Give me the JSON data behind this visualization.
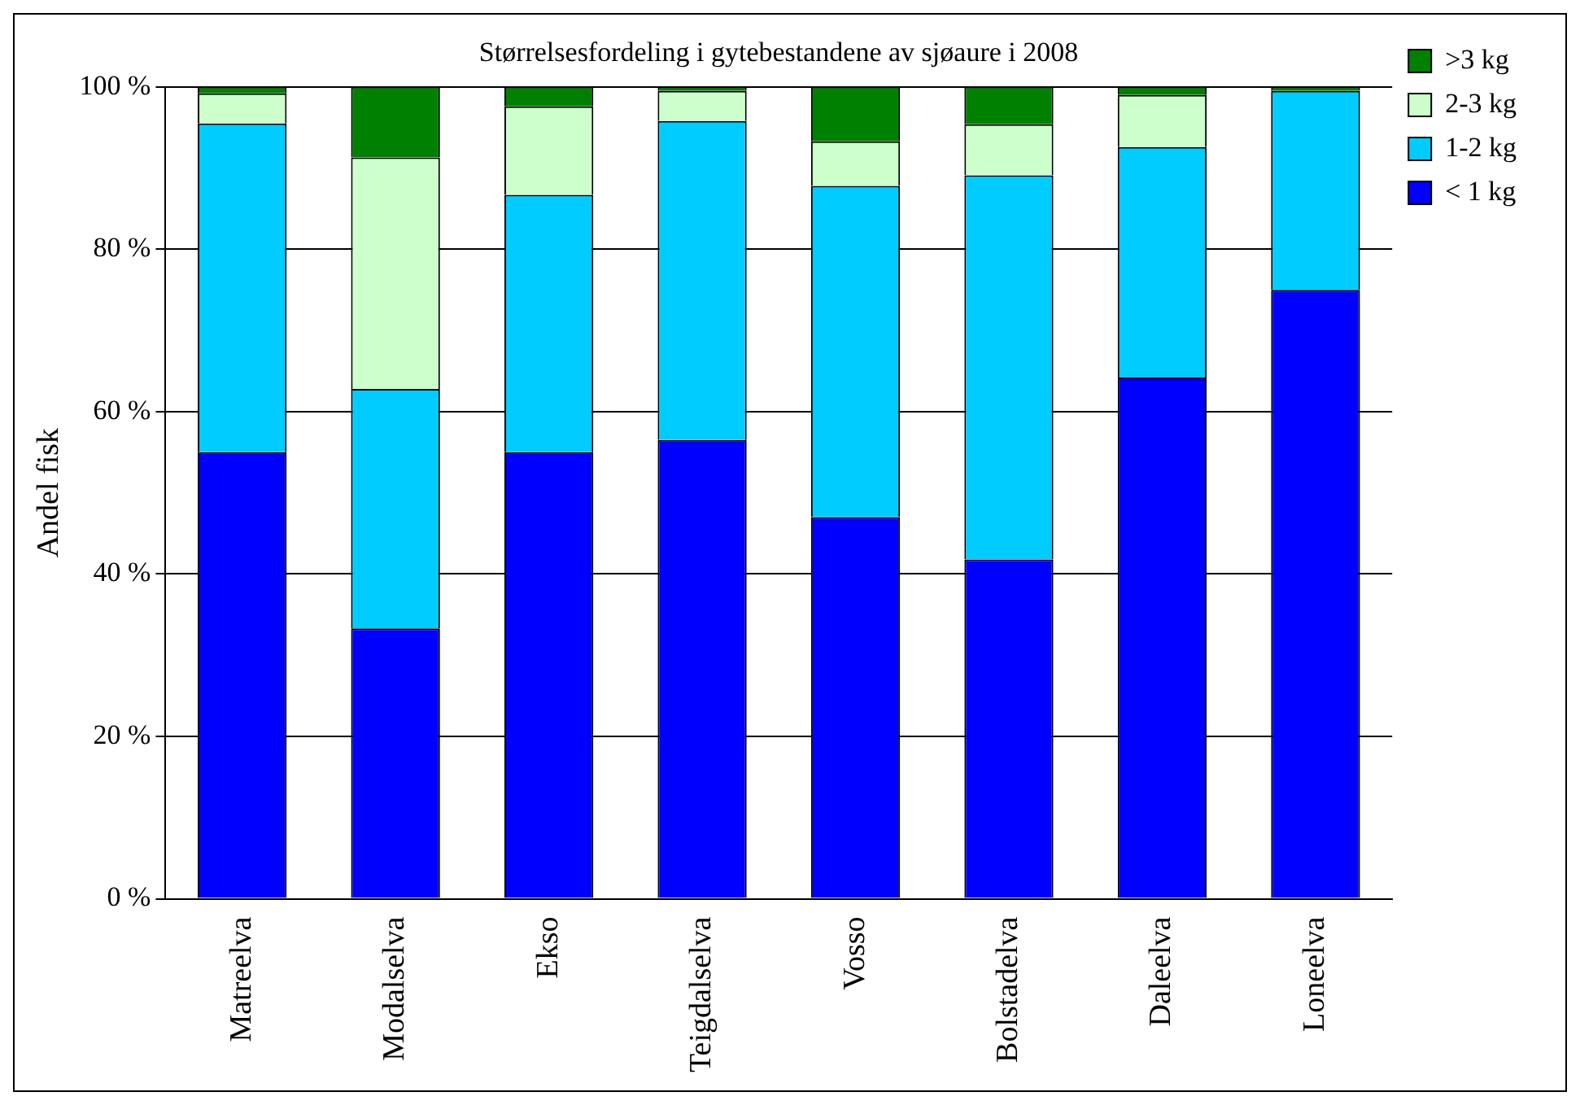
{
  "chart_data": {
    "type": "bar",
    "title": "Størrelsesfordeling i gytebestandene av sjøaure i 2008",
    "ylabel": "Andel fisk",
    "categories": [
      "Matreelva",
      "Modalselva",
      "Ekso",
      "Teigdalselva",
      "Vosso",
      "Bolstadelva",
      "Daleelva",
      "Loneelva"
    ],
    "series": [
      {
        "name": "< 1 kg",
        "color": "#0000ff",
        "values": [
          55,
          33.3,
          55,
          56.5,
          47,
          41.8,
          64.2,
          75
        ]
      },
      {
        "name": "1-2 kg",
        "color": "#00ccff",
        "values": [
          40.5,
          29.5,
          31.7,
          39.3,
          40.8,
          47.3,
          28.4,
          24.5
        ]
      },
      {
        "name": "2-3 kg",
        "color": "#ccffcc",
        "values": [
          3.7,
          28.5,
          10.9,
          3.7,
          5.5,
          6.3,
          6.4,
          0
        ]
      },
      {
        "name": ">3 kg",
        "color": "#008000",
        "values": [
          0.8,
          8.7,
          2.4,
          0.5,
          6.7,
          4.6,
          1,
          0.5
        ]
      }
    ],
    "stacked": true,
    "ylim": [
      0,
      100
    ],
    "yticks": [
      {
        "value": 0,
        "label": "0 %"
      },
      {
        "value": 20,
        "label": "20 %"
      },
      {
        "value": 40,
        "label": "40 %"
      },
      {
        "value": 60,
        "label": "60 %"
      },
      {
        "value": 80,
        "label": "80 %"
      },
      {
        "value": 100,
        "label": "100 %"
      }
    ],
    "grid": "y",
    "legend": "top right"
  }
}
